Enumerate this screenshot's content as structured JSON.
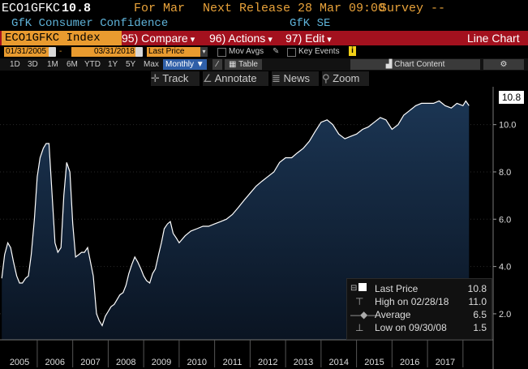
{
  "header": {
    "ticker": "ECO1GFKC",
    "value": "10.8",
    "for_label": "For Mar",
    "next_release": "Next Release 28 Mar 09:00",
    "survey": "Survey --",
    "name": "GfK Consumer Confidence",
    "source": "GfK SE"
  },
  "toolbar": {
    "security": "ECO1GFKC Index",
    "compare": "95) Compare",
    "actions": "96) Actions",
    "edit": "97) Edit",
    "view": "Line Chart"
  },
  "dates": {
    "start": "01/31/2005",
    "dash": "-",
    "end": "03/31/2018",
    "field": "Last Price",
    "mov_avgs": "Mov Avgs",
    "key_events": "Key Events"
  },
  "periods": {
    "items": [
      "1D",
      "3D",
      "1M",
      "6M",
      "YTD",
      "1Y",
      "5Y",
      "Max"
    ],
    "frequency": "Monthly",
    "table": "Table",
    "chart_content": "Chart Content"
  },
  "tools": {
    "track": "Track",
    "annotate": "Annotate",
    "news": "News",
    "zoom": "Zoom"
  },
  "colors": {
    "accent": "#e99b2f",
    "toolbar": "#a3111e",
    "title_blue": "#5fb3d9",
    "area_top": "#1b3553",
    "area_bottom": "#0a1422"
  },
  "legend": {
    "last_price_label": "Last Price",
    "last_price_value": "10.8",
    "high_label": "High on 02/28/18",
    "high_value": "11.0",
    "average_label": "Average",
    "average_value": "6.5",
    "low_label": "Low on 09/30/08",
    "low_value": "1.5"
  },
  "chart_data": {
    "type": "area",
    "title": "",
    "xlabel": "",
    "ylabel": "",
    "ylim": [
      0.9,
      11.6
    ],
    "y_ticks": [
      "2.0",
      "4.0",
      "6.0",
      "8.0",
      "10.0"
    ],
    "x_ticks": [
      "2005",
      "2006",
      "2007",
      "2008",
      "2009",
      "2010",
      "2011",
      "2012",
      "2013",
      "2014",
      "2015",
      "2016",
      "2017"
    ],
    "last_value": "10.8",
    "series": [
      {
        "x": [
          2005.0,
          2005.08,
          2005.17,
          2005.25,
          2005.33,
          2005.42,
          2005.5,
          2005.58,
          2005.67,
          2005.75,
          2005.83,
          2005.92,
          2006.0,
          2006.08,
          2006.17,
          2006.25,
          2006.33,
          2006.42,
          2006.5,
          2006.58,
          2006.67,
          2006.75,
          2006.83,
          2006.92,
          2007.0,
          2007.08,
          2007.17,
          2007.25,
          2007.33,
          2007.42,
          2007.5,
          2007.58,
          2007.67,
          2007.75,
          2007.83,
          2007.92,
          2008.0,
          2008.08,
          2008.17,
          2008.25,
          2008.33,
          2008.42,
          2008.5,
          2008.58,
          2008.67,
          2008.75,
          2008.83,
          2008.92,
          2009.0,
          2009.08,
          2009.17,
          2009.25,
          2009.33,
          2009.42,
          2009.5,
          2009.58,
          2009.67,
          2009.75,
          2009.83,
          2009.92,
          2010.0,
          2010.17,
          2010.33,
          2010.5,
          2010.67,
          2010.83,
          2011.0,
          2011.17,
          2011.33,
          2011.5,
          2011.67,
          2011.83,
          2012.0,
          2012.17,
          2012.33,
          2012.5,
          2012.67,
          2012.83,
          2013.0,
          2013.17,
          2013.33,
          2013.5,
          2013.67,
          2013.83,
          2014.0,
          2014.17,
          2014.33,
          2014.5,
          2014.67,
          2014.83,
          2015.0,
          2015.17,
          2015.33,
          2015.5,
          2015.67,
          2015.83,
          2016.0,
          2016.17,
          2016.33,
          2016.5,
          2016.67,
          2016.83,
          2017.0,
          2017.17,
          2017.33,
          2017.5,
          2017.67,
          2017.83,
          2018.0,
          2018.08,
          2018.17
        ],
        "values": [
          3.5,
          4.5,
          5.0,
          4.8,
          4.2,
          3.6,
          3.3,
          3.3,
          3.5,
          3.6,
          4.5,
          6.0,
          7.8,
          8.6,
          9.0,
          9.2,
          9.2,
          7.0,
          5.0,
          4.6,
          4.8,
          7.0,
          8.4,
          8.0,
          5.8,
          4.4,
          4.5,
          4.6,
          4.6,
          4.8,
          4.2,
          3.6,
          2.0,
          1.7,
          1.5,
          1.9,
          2.1,
          2.3,
          2.4,
          2.6,
          2.8,
          2.9,
          3.2,
          3.7,
          4.1,
          4.4,
          4.2,
          3.9,
          3.6,
          3.4,
          3.3,
          3.7,
          3.9,
          4.5,
          5.0,
          5.6,
          5.8,
          5.9,
          5.4,
          5.2,
          5.0,
          5.3,
          5.5,
          5.6,
          5.7,
          5.7,
          5.8,
          5.9,
          6.0,
          6.2,
          6.5,
          6.8,
          7.1,
          7.4,
          7.6,
          7.8,
          8.0,
          8.4,
          8.6,
          8.6,
          8.8,
          9.0,
          9.3,
          9.7,
          10.1,
          10.2,
          10.0,
          9.6,
          9.4,
          9.5,
          9.6,
          9.8,
          9.9,
          10.1,
          10.3,
          10.2,
          9.8,
          10.0,
          10.4,
          10.6,
          10.8,
          10.9,
          10.9,
          10.9,
          11.0,
          10.8,
          10.7,
          10.9,
          10.8,
          11.0,
          10.8
        ]
      }
    ]
  }
}
